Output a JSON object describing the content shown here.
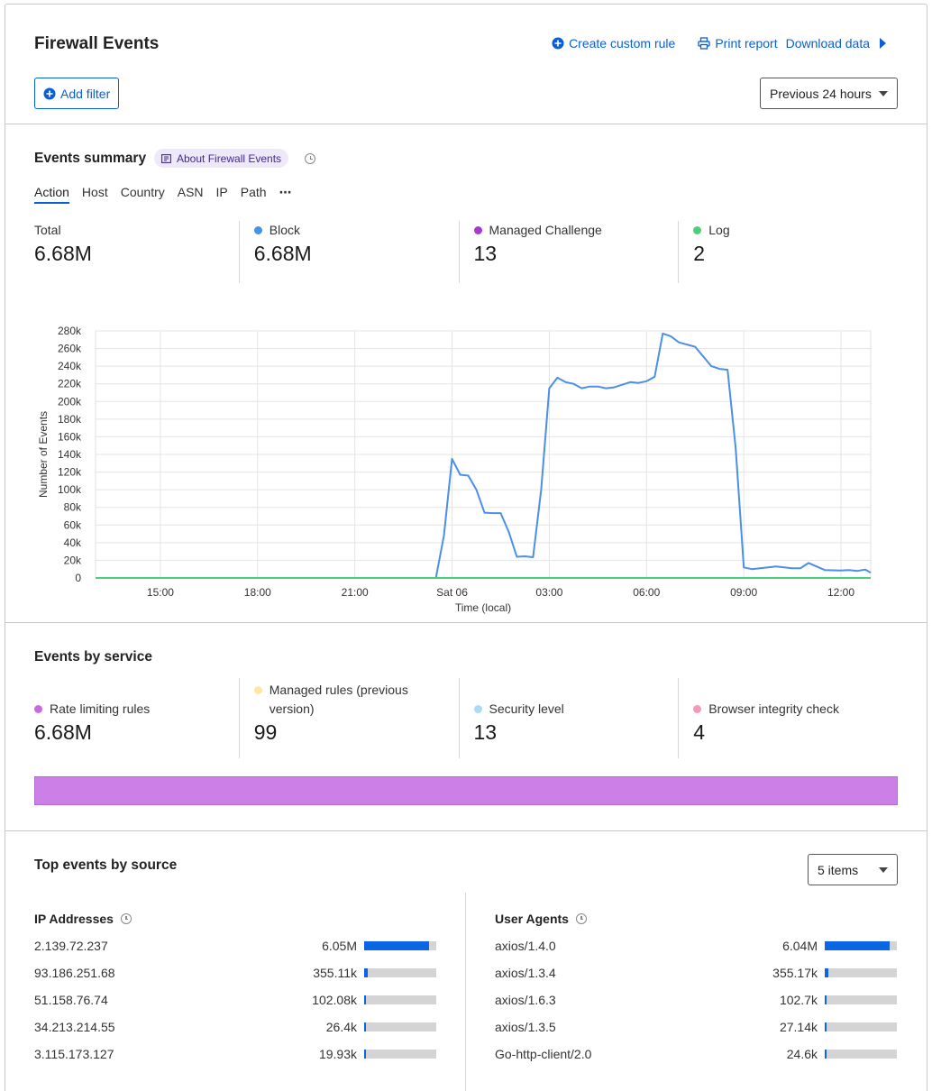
{
  "header": {
    "title": "Firewall Events",
    "create_rule": "Create custom rule",
    "print_report": "Print report",
    "download_data": "Download data",
    "add_filter": "Add filter",
    "time_range": "Previous 24 hours"
  },
  "summary": {
    "title": "Events summary",
    "about_link": "About Firewall Events",
    "tabs": [
      "Action",
      "Host",
      "Country",
      "ASN",
      "IP",
      "Path"
    ],
    "active_tab": "Action",
    "stats": [
      {
        "label": "Total",
        "value": "6.68M",
        "color": ""
      },
      {
        "label": "Block",
        "value": "6.68M",
        "color": "#4a8fe8"
      },
      {
        "label": "Managed Challenge",
        "value": "13",
        "color": "#a838d6"
      },
      {
        "label": "Log",
        "value": "2",
        "color": "#4ccf7a"
      }
    ]
  },
  "chart_data": {
    "type": "line",
    "xlabel": "Time (local)",
    "ylabel": "Number of Events",
    "x_ticks": [
      "15:00",
      "18:00",
      "21:00",
      "Sat 06",
      "03:00",
      "06:00",
      "09:00",
      "12:00"
    ],
    "y_ticks": [
      "0",
      "20k",
      "40k",
      "60k",
      "80k",
      "100k",
      "120k",
      "140k",
      "160k",
      "180k",
      "200k",
      "220k",
      "240k",
      "260k",
      "280k"
    ],
    "ylim": [
      0,
      280000
    ],
    "x_hours": [
      "13:00",
      "12:55 (next day)"
    ],
    "grid": true,
    "series": [
      {
        "name": "Block",
        "color": "#4a8fe8",
        "points": [
          [
            "13:00",
            0
          ],
          [
            "23:30",
            0
          ],
          [
            "23:45",
            48000
          ],
          [
            "00:00",
            135000
          ],
          [
            "00:15",
            117000
          ],
          [
            "00:30",
            116000
          ],
          [
            "00:45",
            100000
          ],
          [
            "01:00",
            74000
          ],
          [
            "01:15",
            73500
          ],
          [
            "01:30",
            73500
          ],
          [
            "01:45",
            52000
          ],
          [
            "02:00",
            24000
          ],
          [
            "02:15",
            24500
          ],
          [
            "02:30",
            23500
          ],
          [
            "02:45",
            100000
          ],
          [
            "03:00",
            215000
          ],
          [
            "03:15",
            227000
          ],
          [
            "03:30",
            222000
          ],
          [
            "03:45",
            220000
          ],
          [
            "04:00",
            215000
          ],
          [
            "04:15",
            217000
          ],
          [
            "04:30",
            217000
          ],
          [
            "04:45",
            215000
          ],
          [
            "05:00",
            216000
          ],
          [
            "05:15",
            219000
          ],
          [
            "05:30",
            222000
          ],
          [
            "05:45",
            221000
          ],
          [
            "06:00",
            223000
          ],
          [
            "06:15",
            228000
          ],
          [
            "06:30",
            277000
          ],
          [
            "06:45",
            274000
          ],
          [
            "07:00",
            267000
          ],
          [
            "07:30",
            262000
          ],
          [
            "08:00",
            240000
          ],
          [
            "08:15",
            237000
          ],
          [
            "08:30",
            236000
          ],
          [
            "08:45",
            147000
          ],
          [
            "09:00",
            12000
          ],
          [
            "09:15",
            10000
          ],
          [
            "09:30",
            11000
          ],
          [
            "10:00",
            13000
          ],
          [
            "10:30",
            11000
          ],
          [
            "10:45",
            11000
          ],
          [
            "11:00",
            17000
          ],
          [
            "11:30",
            9000
          ],
          [
            "12:00",
            8500
          ],
          [
            "12:15",
            9000
          ],
          [
            "12:30",
            8000
          ],
          [
            "12:45",
            9500
          ],
          [
            "12:55",
            6000
          ]
        ]
      },
      {
        "name": "Managed Challenge / Log",
        "color": "#4ccf7a",
        "points": [
          [
            "13:00",
            0
          ],
          [
            "12:55",
            0
          ]
        ]
      }
    ]
  },
  "services": {
    "title": "Events by service",
    "stats": [
      {
        "label": "Rate limiting rules",
        "value": "6.68M",
        "color": "#c86be0"
      },
      {
        "label": "Managed rules (previous version)",
        "value": "99",
        "color": "#fde6a6"
      },
      {
        "label": "Security level",
        "value": "13",
        "color": "#a9dcf2"
      },
      {
        "label": "Browser integrity check",
        "value": "4",
        "color": "#f59ab6"
      }
    ],
    "bar_color": "#cd7fe8"
  },
  "top_events": {
    "title": "Top events by source",
    "items_select": "5 items",
    "ip_addresses": {
      "title": "IP Addresses",
      "rows": [
        {
          "key": "2.139.72.237",
          "value": "6.05M",
          "fraction": 0.906
        },
        {
          "key": "93.186.251.68",
          "value": "355.11k",
          "fraction": 0.053
        },
        {
          "key": "51.158.76.74",
          "value": "102.08k",
          "fraction": 0.015
        },
        {
          "key": "34.213.214.55",
          "value": "26.4k",
          "fraction": 0.004
        },
        {
          "key": "3.115.173.127",
          "value": "19.93k",
          "fraction": 0.003
        }
      ]
    },
    "user_agents": {
      "title": "User Agents",
      "rows": [
        {
          "key": "axios/1.4.0",
          "value": "6.04M",
          "fraction": 0.904
        },
        {
          "key": "axios/1.3.4",
          "value": "355.17k",
          "fraction": 0.053
        },
        {
          "key": "axios/1.6.3",
          "value": "102.7k",
          "fraction": 0.015
        },
        {
          "key": "axios/1.3.5",
          "value": "27.14k",
          "fraction": 0.004
        },
        {
          "key": "Go-http-client/2.0",
          "value": "24.6k",
          "fraction": 0.004
        }
      ]
    }
  }
}
